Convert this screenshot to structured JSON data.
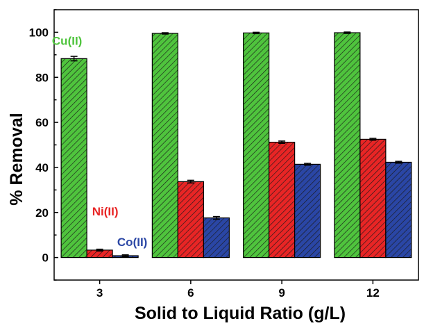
{
  "chart_data": {
    "type": "bar",
    "xlabel": "Solid to Liquid Ratio (g/L)",
    "ylabel": "% Removal",
    "ylim": [
      -10,
      110
    ],
    "yticks": [
      0,
      20,
      40,
      60,
      80,
      100
    ],
    "categories": [
      "3",
      "6",
      "9",
      "12"
    ],
    "series": [
      {
        "name": "Cu(II)",
        "color": "#4fc43d",
        "values": [
          88.3,
          99.5,
          99.7,
          99.8
        ],
        "errors": [
          1.0,
          0.3,
          0.3,
          0.3
        ]
      },
      {
        "name": "Ni(II)",
        "color": "#e82525",
        "values": [
          3.3,
          33.7,
          51.2,
          52.5
        ],
        "errors": [
          0.4,
          0.6,
          0.5,
          0.4
        ]
      },
      {
        "name": "Co(II)",
        "color": "#2a46a5",
        "values": [
          0.8,
          17.6,
          41.4,
          42.3
        ],
        "errors": [
          0.4,
          0.6,
          0.4,
          0.4
        ]
      }
    ],
    "pattern": "diagonal-hatch",
    "grid": false,
    "legend": "inline labels near first group"
  }
}
